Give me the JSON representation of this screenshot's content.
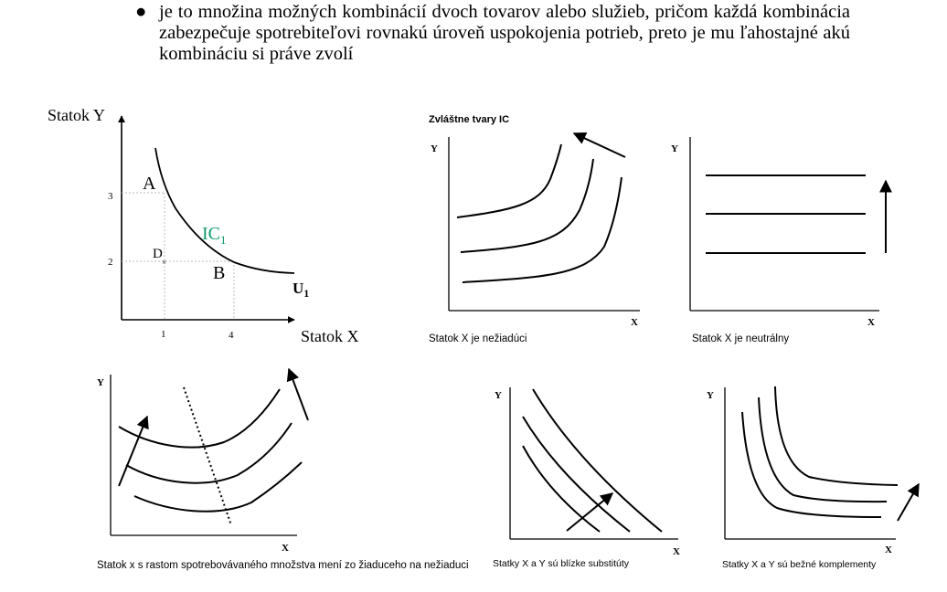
{
  "bullet": {
    "text": "je to množina možných kombinácií dvoch tovarov alebo služieb, pričom každá kombinácia zabezpečuje spotrebiteľovi rovnakú úroveň uspokojenia potrieb, preto je mu ľahostajné akú kombináciu si práve zvolí"
  },
  "main_diagram": {
    "y_axis_label": "Statok Y",
    "x_axis_label": "Statok X",
    "y_ticks": [
      "3",
      "2"
    ],
    "x_ticks": [
      "1",
      "4"
    ],
    "point_a": "A",
    "point_b": "B",
    "point_d": "D",
    "curve_label": "IC",
    "curve_label_sub": "1",
    "utility_label": "U",
    "utility_sub": "1",
    "curve_color": "#0e9a6c"
  },
  "special": {
    "title": "Zvláštne tvary IC",
    "panel1": {
      "y": "Y",
      "x": "X",
      "caption": "Statok X je nežiadúci"
    },
    "panel2": {
      "y": "Y",
      "x": "X",
      "caption": "Statok X je neutrálny"
    },
    "panel3": {
      "y": "Y",
      "x": "X",
      "caption": "Statok x s rastom spotrebovávaného množstva mení zo žiaduceho na nežiaduci"
    },
    "panel4": {
      "y": "Y",
      "x": "X",
      "caption": "Statky X a Y sú blízke substitúty"
    },
    "panel5": {
      "y": "Y",
      "x": "X",
      "caption": "Statky X a Y sú bežné komplementy"
    }
  }
}
